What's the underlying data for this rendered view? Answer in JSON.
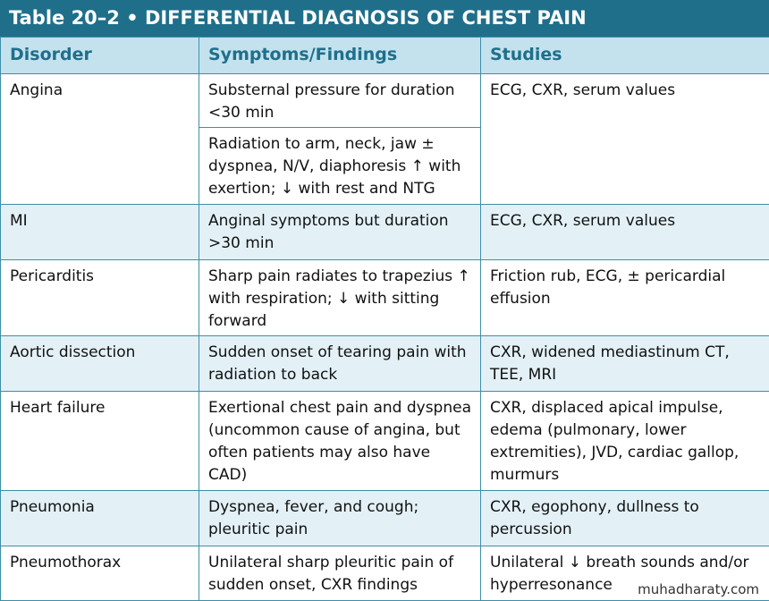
{
  "header": {
    "title": "Table 20–2  •  DIFFERENTIAL DIAGNOSIS OF CHEST PAIN"
  },
  "table": {
    "columns": [
      "Disorder",
      "Symptoms/Findings",
      "Studies"
    ],
    "rows": [
      {
        "disorder": "Angina",
        "findings": [
          "Substernal pressure for duration <30 min",
          "Radiation to arm, neck, jaw ± dyspnea, N/V, diaphoresis ↑ with exertion; ↓ with rest and NTG"
        ],
        "studies": "ECG, CXR, serum values"
      },
      {
        "disorder": "MI",
        "findings": [
          "Anginal symptoms but duration >30 min"
        ],
        "studies": "ECG, CXR, serum values"
      },
      {
        "disorder": "Pericarditis",
        "findings": [
          "Sharp pain radiates to trapezius ↑ with respiration; ↓ with sitting forward"
        ],
        "studies": "Friction rub, ECG, ± pericardial effusion"
      },
      {
        "disorder": "Aortic dissection",
        "findings": [
          "Sudden onset of tearing pain with radiation to back"
        ],
        "studies": "CXR, widened mediastinum CT, TEE, MRI"
      },
      {
        "disorder": "Heart failure",
        "findings": [
          "Exertional chest pain and dyspnea (uncommon cause of angina, but often patients may also have CAD)"
        ],
        "studies": "CXR, displaced apical impulse, edema (pulmonary, lower extremities), JVD, cardiac gallop, murmurs"
      },
      {
        "disorder": "Pneumonia",
        "findings": [
          "Dyspnea, fever, and cough; pleuritic pain"
        ],
        "studies": "CXR, egophony, dullness to percussion"
      },
      {
        "disorder": "Pneumothorax",
        "findings": [
          "Unilateral sharp pleuritic pain of sudden onset, CXR findings"
        ],
        "studies": "Unilateral ↓ breath sounds and/or hyperresonance"
      }
    ]
  },
  "watermark": "muhadharaty.com"
}
